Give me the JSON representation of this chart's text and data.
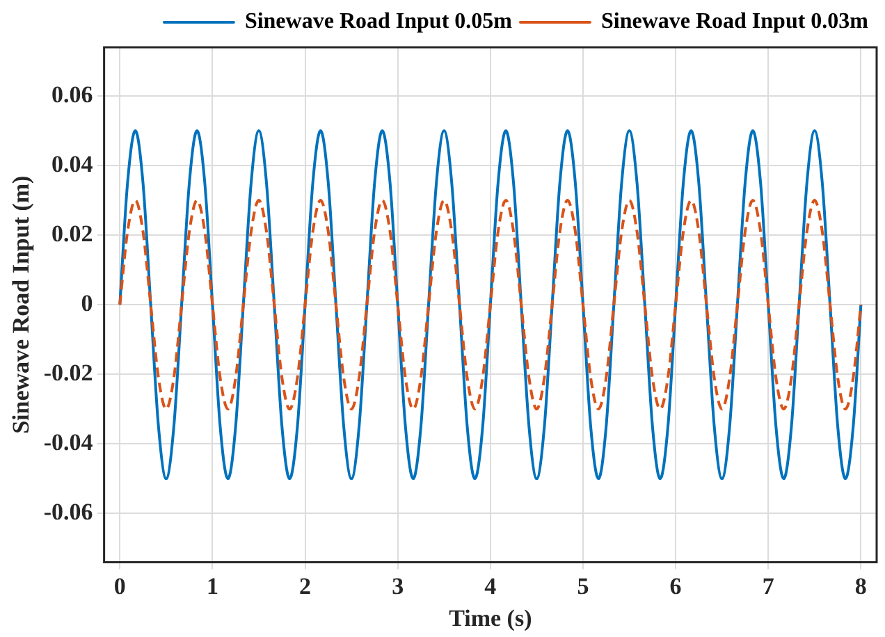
{
  "chart_data": {
    "type": "line",
    "xlabel": "Time (s)",
    "ylabel": "Sinewave Road Input (m)",
    "x": [
      0,
      0.083,
      0.167,
      0.25,
      0.333,
      0.417,
      0.5,
      0.583,
      0.667,
      0.75,
      0.833,
      0.917,
      1,
      1.083,
      1.167,
      1.25,
      1.333,
      1.417,
      1.5,
      1.583,
      1.667,
      1.75,
      1.833,
      1.917,
      2,
      2.083,
      2.167,
      2.25,
      2.333,
      2.417,
      2.5,
      2.583,
      2.667,
      2.75,
      2.833,
      2.917,
      3,
      3.083,
      3.167,
      3.25,
      3.333,
      3.417,
      3.5,
      3.583,
      3.667,
      3.75,
      3.833,
      3.917,
      4,
      4.083,
      4.167,
      4.25,
      4.333,
      4.417,
      4.5,
      4.583,
      4.667,
      4.75,
      4.833,
      4.917,
      5,
      5.083,
      5.167,
      5.25,
      5.333,
      5.417,
      5.5,
      5.583,
      5.667,
      5.75,
      5.833,
      5.917,
      6,
      6.083,
      6.167,
      6.25,
      6.333,
      6.417,
      6.5,
      6.583,
      6.667,
      6.75,
      6.833,
      6.917,
      7,
      7.083,
      7.167,
      7.25,
      7.333,
      7.417,
      7.5,
      7.583,
      7.667,
      7.75,
      7.833,
      7.917,
      8
    ],
    "series": [
      {
        "name": "Sinewave Road Input 0.05m",
        "color": "#0072bd",
        "line_style": "solid",
        "values": [
          0,
          0.035,
          0.05,
          0.035,
          0,
          -0.035,
          -0.05,
          -0.035,
          0,
          0.035,
          0.05,
          0.035,
          0,
          -0.035,
          -0.05,
          -0.035,
          0,
          0.035,
          0.05,
          0.035,
          0,
          -0.035,
          -0.05,
          -0.035,
          0,
          0.035,
          0.05,
          0.035,
          0,
          -0.035,
          -0.05,
          -0.035,
          0,
          0.035,
          0.05,
          0.035,
          0,
          -0.035,
          -0.05,
          -0.035,
          0,
          0.035,
          0.05,
          0.035,
          0,
          -0.035,
          -0.05,
          -0.035,
          0,
          0.035,
          0.05,
          0.035,
          0,
          -0.035,
          -0.05,
          -0.035,
          0,
          0.035,
          0.05,
          0.035,
          0,
          -0.035,
          -0.05,
          -0.035,
          0,
          0.035,
          0.05,
          0.035,
          0,
          -0.035,
          -0.05,
          -0.035,
          0,
          0.035,
          0.05,
          0.035,
          0,
          -0.035,
          -0.05,
          -0.035,
          0,
          0.035,
          0.05,
          0.035,
          0,
          -0.035,
          -0.05,
          -0.035,
          0,
          0.035,
          0.05,
          0.035,
          0,
          -0.035,
          -0.05,
          -0.035,
          0
        ]
      },
      {
        "name": "Sinewave Road Input 0.03m",
        "color": "#d95319",
        "line_style": "dashed",
        "values": [
          0,
          0.021,
          0.03,
          0.021,
          0,
          -0.021,
          -0.03,
          -0.021,
          0,
          0.021,
          0.03,
          0.021,
          0,
          -0.021,
          -0.03,
          -0.021,
          0,
          0.021,
          0.03,
          0.021,
          0,
          -0.021,
          -0.03,
          -0.021,
          0,
          0.021,
          0.03,
          0.021,
          0,
          -0.021,
          -0.03,
          -0.021,
          0,
          0.021,
          0.03,
          0.021,
          0,
          -0.021,
          -0.03,
          -0.021,
          0,
          0.021,
          0.03,
          0.021,
          0,
          -0.021,
          -0.03,
          -0.021,
          0,
          0.021,
          0.03,
          0.021,
          0,
          -0.021,
          -0.03,
          -0.021,
          0,
          0.021,
          0.03,
          0.021,
          0,
          -0.021,
          -0.03,
          -0.021,
          0,
          0.021,
          0.03,
          0.021,
          0,
          -0.021,
          -0.03,
          -0.021,
          0,
          0.021,
          0.03,
          0.021,
          0,
          -0.021,
          -0.03,
          -0.021,
          0,
          0.021,
          0.03,
          0.021,
          0,
          -0.021,
          -0.03,
          -0.021,
          0,
          0.021,
          0.03,
          0.021,
          0,
          -0.021,
          -0.03,
          -0.021,
          0
        ]
      }
    ],
    "xlim": [
      -0.17,
      8.17
    ],
    "xticks": [
      0,
      1,
      2,
      3,
      4,
      5,
      6,
      7,
      8
    ],
    "ylim": [
      -0.074,
      0.074
    ],
    "yticks": [
      -0.06,
      -0.04,
      -0.02,
      0,
      0.02,
      0.04,
      0.06
    ],
    "grid": true,
    "legend": "top right",
    "marker": "none"
  }
}
